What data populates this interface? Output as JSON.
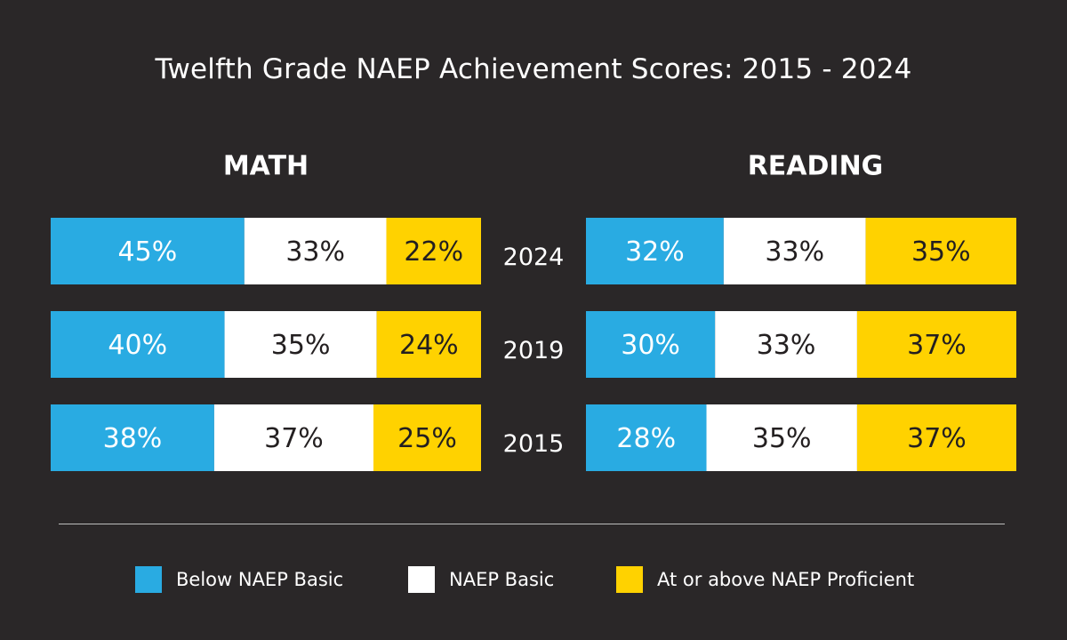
{
  "chart_data": {
    "type": "bar",
    "stacked": true,
    "orientation": "horizontal",
    "title": "Twelfth Grade NAEP Achievement Scores: 2015 - 2024",
    "categories": [
      "2024",
      "2019",
      "2015"
    ],
    "colors": {
      "below_basic": "#29abe2",
      "basic": "#ffffff",
      "proficient": "#ffd200",
      "light_text": "#ffffff",
      "dark_text": "#231f20"
    },
    "panels": [
      {
        "name": "MATH",
        "series": [
          {
            "name": "Below NAEP Basic",
            "values": [
              45,
              40,
              38
            ],
            "labels": [
              "45%",
              "40%",
              "38%"
            ]
          },
          {
            "name": "NAEP Basic",
            "values": [
              33,
              35,
              37
            ],
            "labels": [
              "33%",
              "35%",
              "37%"
            ]
          },
          {
            "name": "At or above NAEP Proficient",
            "values": [
              22,
              24,
              25
            ],
            "labels": [
              "22%",
              "24%",
              "25%"
            ]
          }
        ]
      },
      {
        "name": "READING",
        "series": [
          {
            "name": "Below NAEP Basic",
            "values": [
              32,
              30,
              28
            ],
            "labels": [
              "32%",
              "30%",
              "28%"
            ]
          },
          {
            "name": "NAEP Basic",
            "values": [
              33,
              33,
              35
            ],
            "labels": [
              "33%",
              "33%",
              "35%"
            ]
          },
          {
            "name": "At or above NAEP Proficient",
            "values": [
              35,
              37,
              37
            ],
            "labels": [
              "35%",
              "37%",
              "37%"
            ]
          }
        ]
      }
    ],
    "legend": [
      {
        "label": "Below NAEP Basic",
        "color": "#29abe2"
      },
      {
        "label": "NAEP Basic",
        "color": "#ffffff"
      },
      {
        "label": "At or above NAEP Proficient",
        "color": "#ffd200"
      }
    ],
    "legend_position": "bottom"
  }
}
